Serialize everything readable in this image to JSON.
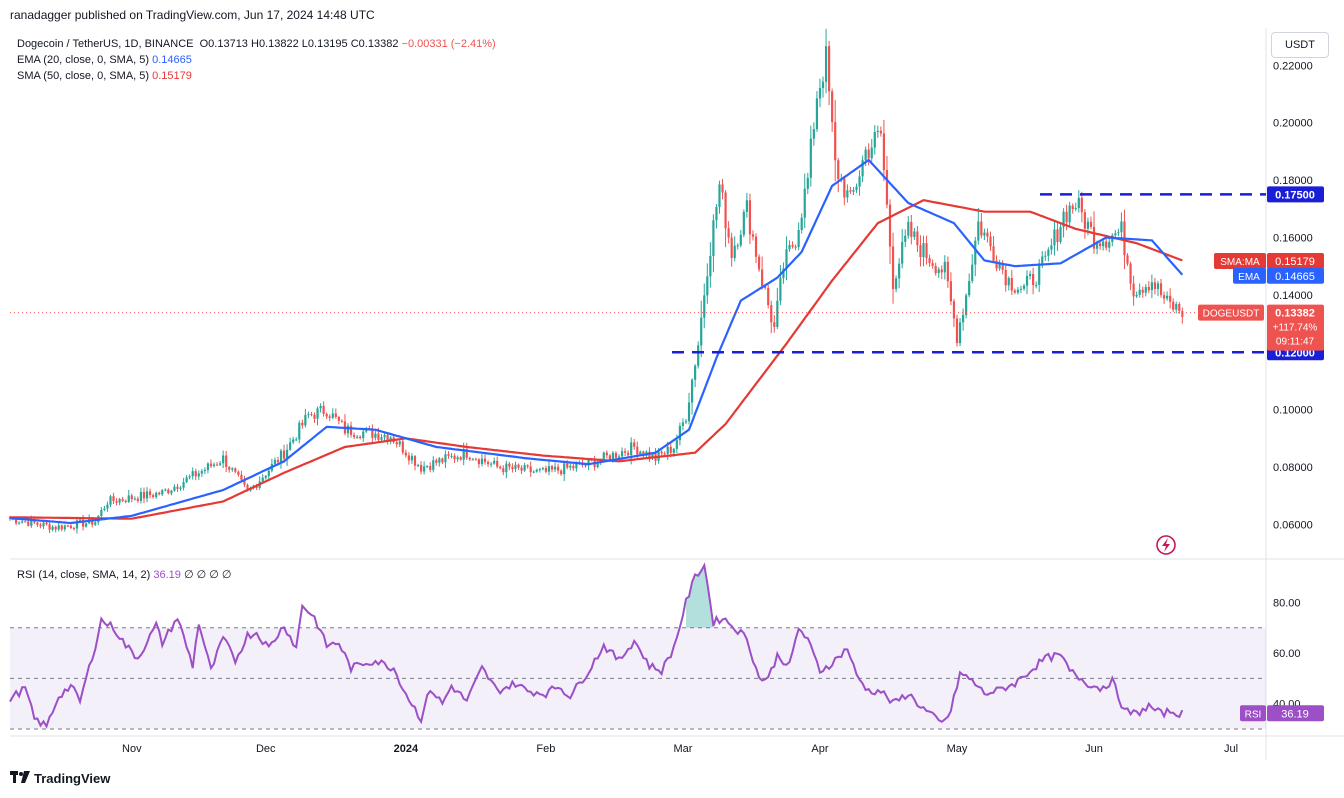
{
  "header": {
    "published_line": "ranadagger published on TradingView.com, Jun 17, 2024 14:48 UTC"
  },
  "legend": {
    "symbol": "Dogecoin / TetherUS, 1D, BINANCE",
    "open": "O0.13713",
    "high": "H0.13822",
    "low": "L0.13195",
    "close": "C0.13382",
    "change": "−0.00331 (−2.41%)",
    "ema_label": "EMA (20, close, 0, SMA, 5)",
    "ema_value": "0.14665",
    "sma_label": "SMA (50, close, 0, SMA, 5)",
    "sma_value": "0.15179"
  },
  "currency_button": "USDT",
  "rsi_legend": {
    "label": "RSI (14, close, SMA, 14, 2)",
    "value": "36.19",
    "extras": "∅ ∅ ∅ ∅"
  },
  "footer": {
    "brand": "TradingView"
  },
  "colors": {
    "up": "#26a69a",
    "down": "#ef5350",
    "ema": "#2962ff",
    "sma": "#e53935",
    "rsi": "#9c4fc7",
    "level": "#1a1fd6",
    "price_tag": "#ef5350"
  },
  "chart_data": {
    "type": "candlestick",
    "y_ticks": [
      "0.22000",
      "0.20000",
      "0.18000",
      "0.16000",
      "0.14000",
      "0.10000",
      "0.08000",
      "0.06000"
    ],
    "x_ticks": [
      "Nov",
      "Dec",
      "2024",
      "Feb",
      "Mar",
      "Apr",
      "May",
      "Jun",
      "Jul"
    ],
    "ylim": [
      0.049,
      0.233
    ],
    "horizontal_levels": [
      {
        "label": "0.17500",
        "value": 0.175
      },
      {
        "label": "0.12000",
        "value": 0.12
      }
    ],
    "price_labels": {
      "sma_tag": "SMA:MA",
      "sma_value": "0.15179",
      "ema_tag": "EMA",
      "ema_value": "0.14665",
      "symbol_tag": "DOGEUSDT",
      "last_price": "0.13382",
      "last_change": "+117.74%",
      "countdown": "09:11:47"
    },
    "series": [
      {
        "name": "EMA",
        "values_anchor": [
          [
            0,
            0.0622
          ],
          [
            20,
            0.0605
          ],
          [
            40,
            0.063
          ],
          [
            70,
            0.072
          ],
          [
            90,
            0.082
          ],
          [
            104,
            0.094
          ],
          [
            120,
            0.093
          ],
          [
            140,
            0.087
          ],
          [
            170,
            0.083
          ],
          [
            190,
            0.081
          ],
          [
            212,
            0.085
          ],
          [
            223,
            0.093
          ],
          [
            232,
            0.118
          ],
          [
            240,
            0.138
          ],
          [
            252,
            0.146
          ],
          [
            260,
            0.155
          ],
          [
            270,
            0.178
          ],
          [
            282,
            0.187
          ],
          [
            295,
            0.172
          ],
          [
            310,
            0.165
          ],
          [
            320,
            0.152
          ],
          [
            330,
            0.15
          ],
          [
            345,
            0.151
          ],
          [
            360,
            0.16
          ],
          [
            375,
            0.159
          ],
          [
            385,
            0.147
          ]
        ]
      },
      {
        "name": "SMA",
        "values_anchor": [
          [
            0,
            0.0625
          ],
          [
            40,
            0.062
          ],
          [
            70,
            0.068
          ],
          [
            90,
            0.078
          ],
          [
            110,
            0.087
          ],
          [
            130,
            0.09
          ],
          [
            150,
            0.087
          ],
          [
            175,
            0.084
          ],
          [
            200,
            0.082
          ],
          [
            225,
            0.085
          ],
          [
            235,
            0.095
          ],
          [
            255,
            0.123
          ],
          [
            270,
            0.145
          ],
          [
            285,
            0.165
          ],
          [
            300,
            0.173
          ],
          [
            320,
            0.169
          ],
          [
            335,
            0.169
          ],
          [
            350,
            0.163
          ],
          [
            370,
            0.158
          ],
          [
            385,
            0.152
          ]
        ]
      },
      {
        "name": "RSI",
        "ylim": [
          28,
          96
        ],
        "levels": [
          70,
          50,
          30
        ],
        "tick_labels": [
          "80.00",
          "60.00",
          "40.00"
        ],
        "last": 36.19
      }
    ]
  }
}
